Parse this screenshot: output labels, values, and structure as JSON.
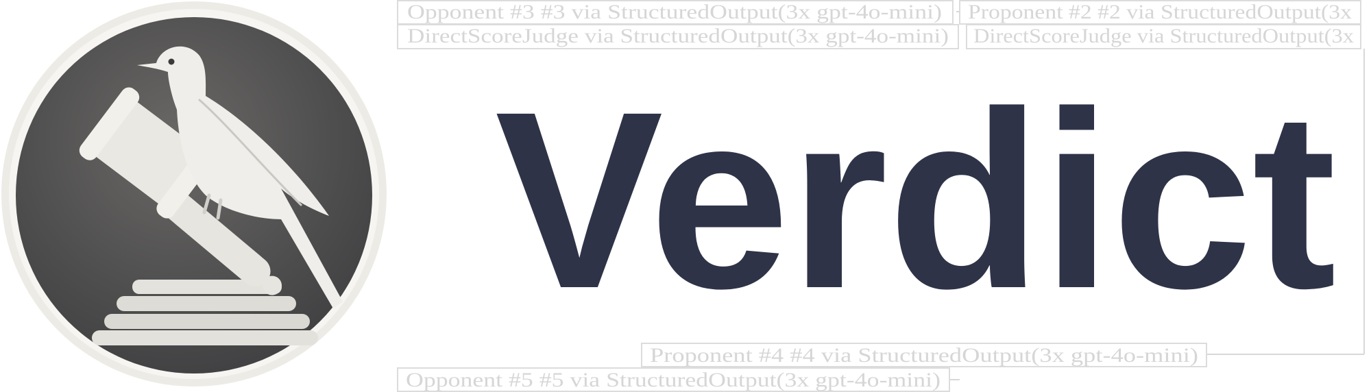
{
  "brand": {
    "title": "Verdict",
    "title_color": "#2e3348",
    "logo": {
      "description_icon": "bird-on-gavel-logo",
      "background": "#4e4d4c",
      "rim": "#ecebe6"
    }
  },
  "diagram": {
    "nodes": [
      {
        "label": "Proponent #2 #2 via StructuredOutput(3x"
      },
      {
        "label": "Opponent #3 #3 via StructuredOutput(3x gpt-4o-mini)"
      },
      {
        "label": "DirectScoreJudge via StructuredOutput(3x gpt-4o-mini)"
      },
      {
        "label": "Proponent #4 #4 via StructuredOutput(3x gpt-4o-mini)"
      },
      {
        "label": "Opponent #5 #5 via StructuredOutput(3x gpt-4o-mini)"
      },
      {
        "label": "DirectScoreJudge via StructuredOutput(3x"
      }
    ],
    "line_color": "#d8d8d8"
  }
}
